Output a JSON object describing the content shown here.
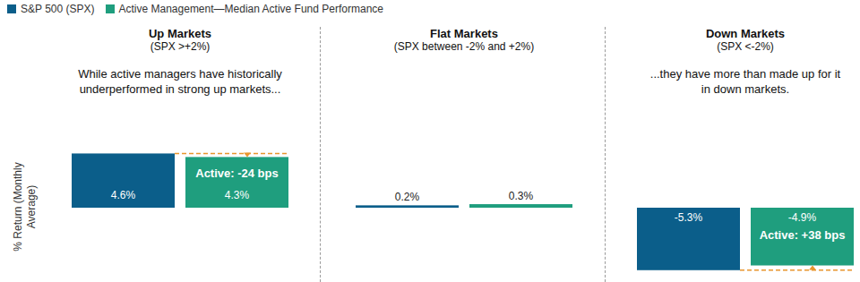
{
  "chart_data": [
    {
      "type": "bar",
      "title": "Up Markets",
      "subtitle": "(SPX >+2%)",
      "annotation": "While active managers have historically underperformed in strong up markets...",
      "callout": "Active: -24 bps",
      "y_label": "% Return (Monthly Average)",
      "legend": "top",
      "categories": [
        null
      ],
      "series": [
        {
          "name": "S&P 500 (SPX)",
          "color": "#0b5e8a",
          "values": [
            4.6
          ],
          "value_labels": [
            "4.6%"
          ]
        },
        {
          "name": "Active Management—Median Active Fund Performance",
          "color": "#1f9e7e",
          "values": [
            4.3
          ],
          "value_labels": [
            "4.3%"
          ]
        }
      ],
      "ylim": [
        -6,
        6
      ],
      "yticks": [
        -6,
        6
      ],
      "grid": false,
      "tick_labels": false,
      "data_labels": true
    },
    {
      "type": "bar",
      "title": "Flat Markets",
      "subtitle": "(SPX between -2% and +2%)",
      "categories": [
        null
      ],
      "series": [
        {
          "name": "S&P 500 (SPX)",
          "color": "#0b5e8a",
          "values": [
            0.2
          ],
          "value_labels": [
            "0.2%"
          ]
        },
        {
          "name": "Active Management—Median Active Fund Performance",
          "color": "#1f9e7e",
          "values": [
            0.3
          ],
          "value_labels": [
            "0.3%"
          ]
        }
      ],
      "ylim": [
        -6,
        6
      ],
      "yticks": [
        -6,
        6
      ],
      "grid": false,
      "tick_labels": false,
      "data_labels": true
    },
    {
      "type": "bar",
      "title": "Down Markets",
      "subtitle": "(SPX <-2%)",
      "annotation": "...they have more than made up for it in down markets.",
      "callout": "Active: +38 bps",
      "categories": [
        null
      ],
      "series": [
        {
          "name": "S&P 500 (SPX)",
          "color": "#0b5e8a",
          "values": [
            -5.3
          ],
          "value_labels": [
            "-5.3%"
          ]
        },
        {
          "name": "Active Management—Median Active Fund Performance",
          "color": "#1f9e7e",
          "values": [
            -4.9
          ],
          "value_labels": [
            "-4.9%"
          ]
        }
      ],
      "ylim": [
        -6,
        6
      ],
      "yticks": [
        -6,
        6
      ],
      "grid": false,
      "tick_labels": false,
      "data_labels": true
    }
  ]
}
